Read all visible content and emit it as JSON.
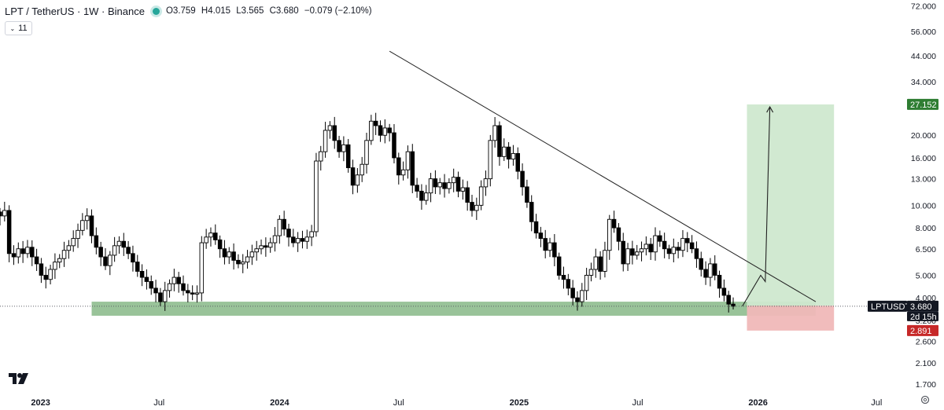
{
  "header": {
    "symbol_line": "LPT / TetherUS · 1W · Binance",
    "open": "O3.759",
    "high": "H4.015",
    "low": "L3.565",
    "close": "C3.680",
    "change": "−0.079 (−2.10%)"
  },
  "indicator_badge": {
    "count": "11"
  },
  "price_labels": {
    "symbol_tag": "LPTUSDT",
    "current_price": "3.680",
    "countdown": "2d 15h",
    "target_price": "27.152",
    "stop_price": "2.891"
  },
  "colors": {
    "up": "#000000",
    "down": "#000000",
    "support_zone": "#5a9e5a",
    "profit_zone": "#cfe8cf",
    "loss_zone": "#f0b8b8",
    "target_label": "#2e7d32",
    "stop_label": "#c62828"
  },
  "chart_data": {
    "type": "candlestick",
    "scale": "log",
    "ylim": [
      1.6,
      74
    ],
    "yticks": [
      "72.000",
      "56.000",
      "44.000",
      "34.000",
      "27.000",
      "20.000",
      "16.000",
      "13.000",
      "10.000",
      "8.000",
      "6.500",
      "5.000",
      "4.000",
      "3.200",
      "2.600",
      "2.100",
      "1.700"
    ],
    "ytick_values": [
      72,
      56,
      44,
      34,
      27,
      20,
      16,
      13,
      10,
      8,
      6.5,
      5,
      4,
      3.2,
      2.6,
      2.1,
      1.7
    ],
    "xticks": [
      "2023",
      "Jul",
      "2024",
      "Jul",
      "2025",
      "Jul",
      "2026",
      "Jul"
    ],
    "xtick_values": [
      "2023-01-01",
      "2023-07-01",
      "2024-01-01",
      "2024-07-01",
      "2025-01-01",
      "2025-07-01",
      "2026-01-01",
      "2026-07-01"
    ],
    "x_range": [
      "2022-10-31",
      "2026-10-12"
    ],
    "weekly_closes_start": "2022-10-31",
    "weekly_closes": [
      9.0,
      9.5,
      6.2,
      6.0,
      6.5,
      6.2,
      6.6,
      6.0,
      5.6,
      5.0,
      4.8,
      5.3,
      5.7,
      5.9,
      6.4,
      6.7,
      7.2,
      7.8,
      8.6,
      9.0,
      7.4,
      6.6,
      6.0,
      5.5,
      6.1,
      6.7,
      7.0,
      6.6,
      6.2,
      5.7,
      5.2,
      4.9,
      4.7,
      4.4,
      4.2,
      3.85,
      4.3,
      4.6,
      4.9,
      4.6,
      4.3,
      4.2,
      4.15,
      4.2,
      6.9,
      7.3,
      7.6,
      7.1,
      6.5,
      6.0,
      6.3,
      5.8,
      5.6,
      5.7,
      6.0,
      6.3,
      6.5,
      6.7,
      6.6,
      6.9,
      7.4,
      8.7,
      7.9,
      7.3,
      6.9,
      7.2,
      7.0,
      7.3,
      7.7,
      15.5,
      17.0,
      21.0,
      22.0,
      19.0,
      17.0,
      18.2,
      14.5,
      12.2,
      13.5,
      15.0,
      19.0,
      23.0,
      22.0,
      20.0,
      21.5,
      20.5,
      16.0,
      13.5,
      14.2,
      17.0,
      12.2,
      11.5,
      10.5,
      11.3,
      13.0,
      12.0,
      12.5,
      11.8,
      12.5,
      13.2,
      11.5,
      11.9,
      10.3,
      9.5,
      10.0,
      12.0,
      13.0,
      19.0,
      22.0,
      16.2,
      17.8,
      15.8,
      16.7,
      14.0,
      12.0,
      10.3,
      8.5,
      7.6,
      7.2,
      6.4,
      6.9,
      6.0,
      5.0,
      4.8,
      4.4,
      4.0,
      3.85,
      4.3,
      5.0,
      5.3,
      6.0,
      5.2,
      6.4,
      8.7,
      8.0,
      7.0,
      5.6,
      6.5,
      6.1,
      6.3,
      6.5,
      6.8,
      6.3,
      7.4,
      7.0,
      6.5,
      6.2,
      6.6,
      6.4,
      7.2,
      6.9,
      6.5,
      5.9,
      5.3,
      4.9,
      5.6,
      5.0,
      4.4,
      4.1,
      3.759,
      3.68
    ],
    "last_candle": {
      "open": 3.759,
      "high": 4.015,
      "low": 3.565,
      "close": 3.68
    },
    "annotations": {
      "support_zone": {
        "x": [
          "2023-03-20",
          "2026-03-30"
        ],
        "y": [
          3.35,
          3.85
        ]
      },
      "descending_trendline": {
        "x": [
          "2024-06-17",
          "2026-03-30"
        ],
        "y": [
          46.0,
          3.85
        ]
      },
      "long_position": {
        "x": [
          "2025-12-15",
          "2026-04-27"
        ],
        "entry": 3.7,
        "target": 27.152,
        "stop": 2.891
      },
      "projection_path": {
        "x": [
          "2025-12-08",
          "2026-01-05",
          "2026-01-12",
          "2026-01-19"
        ],
        "y": [
          3.68,
          5.0,
          4.7,
          26.5
        ]
      }
    },
    "current_price_line": 3.68
  }
}
